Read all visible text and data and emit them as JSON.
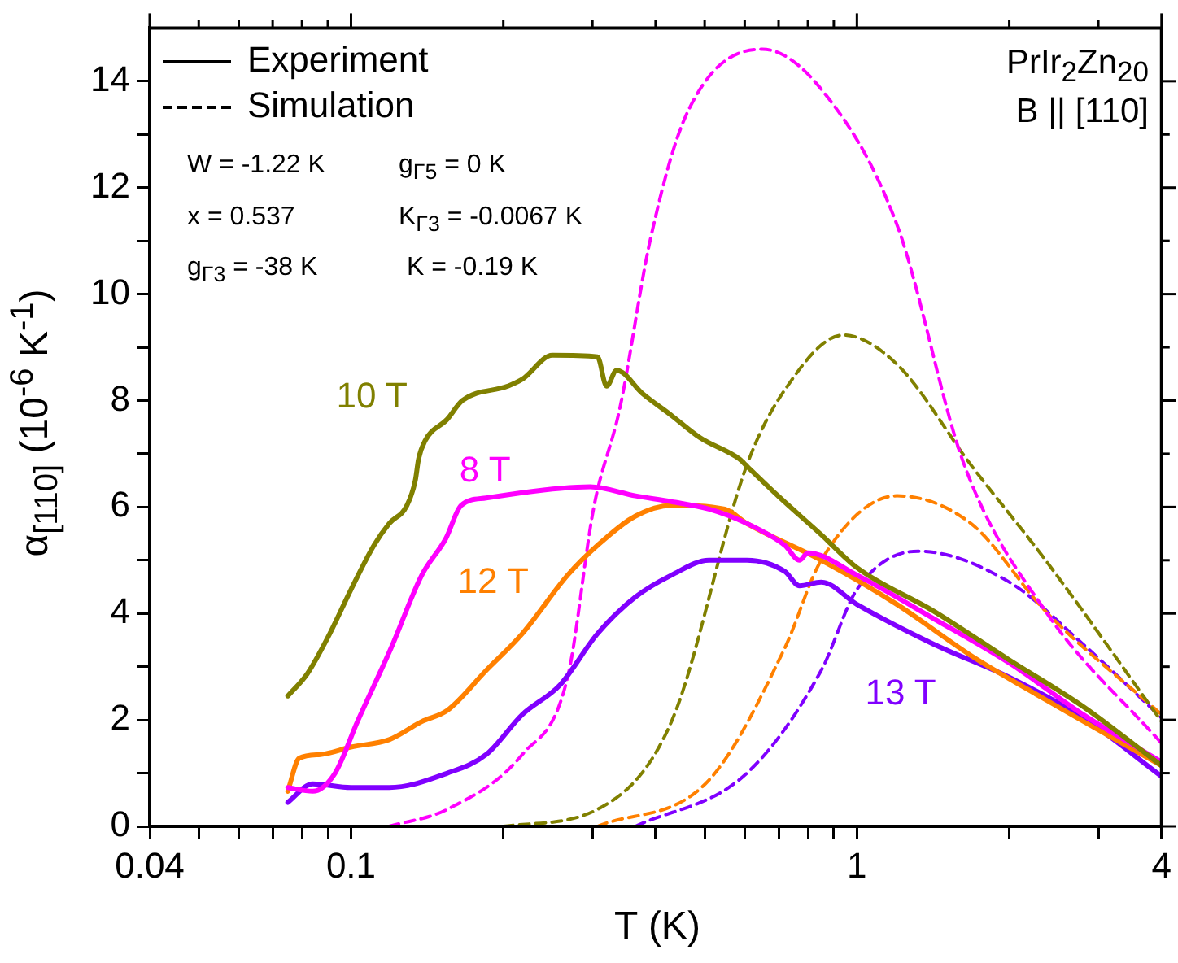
{
  "chart_data": {
    "type": "line",
    "xlabel": "T (K)",
    "ylabel": "α$_{[110]}$ (10$^{-6}$ K$^{-1}$)",
    "log": "x",
    "xlim": [
      0.04,
      4
    ],
    "xticks": [
      0.04,
      {
        "value": 0.05,
        "label": null
      },
      {
        "value": 0.06,
        "label": null
      },
      {
        "value": 0.07,
        "label": null
      },
      {
        "value": 0.08,
        "label": null
      },
      {
        "value": 0.09,
        "label": null
      },
      0.1,
      {
        "value": 0.2,
        "label": null
      },
      {
        "value": 0.3,
        "label": null
      },
      {
        "value": 0.4,
        "label": null
      },
      {
        "value": 0.5,
        "label": null
      },
      {
        "value": 0.6,
        "label": null
      },
      {
        "value": 0.7,
        "label": null
      },
      {
        "value": 0.8,
        "label": null
      },
      {
        "value": 0.9,
        "label": null
      },
      1,
      {
        "value": 2,
        "label": null
      },
      {
        "value": 3,
        "label": null
      },
      4
    ],
    "ylim": [
      0,
      15
    ],
    "yticks": [
      0,
      {
        "value": 1,
        "label": null
      },
      2,
      {
        "value": 3,
        "label": null
      },
      4,
      {
        "value": 5,
        "label": null
      },
      6,
      {
        "value": 7,
        "label": null
      },
      8,
      {
        "value": 9,
        "label": null
      },
      10,
      {
        "value": 11,
        "label": null
      },
      12,
      {
        "value": 13,
        "label": null
      },
      14
    ],
    "grid": false,
    "legend": false,
    "marker": "none",
    "annotations": [
      "Experiment",
      "Simulation",
      "PrIr$_{2}$Zn$_{20}$",
      "B || [110]",
      "W = -1.22 K",
      "g$_{Γ5}$ = 0 K",
      "x = 0.537",
      "K$_{Γ3}$ = -0.0067 K",
      "g$_{Γ3}$ = -38 K",
      "K = -0.19 K"
    ],
    "series": [
      {
        "name": "10 T",
        "color": "#808000",
        "line_style": "solid",
        "x": [
          0.075,
          0.082,
          0.09,
          0.1,
          0.111,
          0.119,
          0.129,
          0.134,
          0.136,
          0.14,
          0.155,
          0.166,
          0.204,
          0.218,
          0.25,
          0.307,
          0.32,
          0.335,
          0.377,
          0.43,
          0.49,
          0.586,
          0.607,
          0.7,
          0.85,
          1.0,
          1.42,
          1.99,
          2.8,
          4
        ],
        "values": [
          2.45,
          2.87,
          3.55,
          4.45,
          5.28,
          5.69,
          6.03,
          6.5,
          6.9,
          7.24,
          7.65,
          8.0,
          8.27,
          8.4,
          8.85,
          8.82,
          8.27,
          8.57,
          8.13,
          7.72,
          7.3,
          6.9,
          6.76,
          6.2,
          5.48,
          4.86,
          4.04,
          3.14,
          2.25,
          1.14
        ]
      },
      {
        "name": "8 T",
        "color": "#ff00ff",
        "line_style": "solid",
        "x": [
          0.075,
          0.084,
          0.093,
          0.103,
          0.12,
          0.138,
          0.154,
          0.165,
          0.185,
          0.218,
          0.259,
          0.297,
          0.365,
          0.43,
          0.51,
          0.606,
          0.72,
          0.77,
          0.8,
          1.0,
          1.42,
          2.0,
          2.8,
          4
        ],
        "values": [
          0.73,
          0.66,
          1.0,
          1.97,
          3.35,
          4.72,
          5.41,
          6.03,
          6.17,
          6.27,
          6.35,
          6.38,
          6.21,
          6.1,
          5.96,
          5.69,
          5.28,
          5.0,
          5.14,
          4.72,
          3.9,
          3.07,
          2.1,
          1.21
        ]
      },
      {
        "name": "12 T",
        "color": "#ff8000",
        "line_style": "solid",
        "x": [
          0.075,
          0.079,
          0.087,
          0.1,
          0.119,
          0.138,
          0.155,
          0.185,
          0.218,
          0.268,
          0.307,
          0.365,
          0.43,
          0.548,
          0.606,
          0.85,
          1.2,
          1.68,
          2.36,
          4
        ],
        "values": [
          0.66,
          1.28,
          1.35,
          1.49,
          1.63,
          1.97,
          2.18,
          2.93,
          3.62,
          4.72,
          5.28,
          5.83,
          6.03,
          5.96,
          5.69,
          5.0,
          4.17,
          3.21,
          2.38,
          1.14
        ]
      },
      {
        "name": "13 T",
        "color": "#8000ff",
        "line_style": "solid",
        "x": [
          0.075,
          0.084,
          0.1,
          0.119,
          0.155,
          0.185,
          0.218,
          0.259,
          0.307,
          0.365,
          0.43,
          0.51,
          0.606,
          0.72,
          0.77,
          0.85,
          1.0,
          1.42,
          2.0,
          2.8,
          4
        ],
        "values": [
          0.45,
          0.8,
          0.73,
          0.73,
          1.0,
          1.35,
          2.1,
          2.66,
          3.62,
          4.31,
          4.72,
          5.0,
          5.0,
          4.79,
          4.52,
          4.59,
          4.17,
          3.42,
          2.8,
          2.04,
          0.94
        ]
      },
      {
        "color": "#ff00ff",
        "line_style": "dashed",
        "x": [
          0.119,
          0.155,
          0.218,
          0.268,
          0.302,
          0.34,
          0.39,
          0.46,
          0.65,
          0.85,
          1.2,
          1.63,
          2.36,
          4
        ],
        "values": [
          0,
          0.32,
          1.35,
          2.8,
          6.0,
          7.86,
          11.0,
          13.37,
          14.6,
          13.85,
          11.3,
          6.79,
          4.04,
          1.56
        ]
      },
      {
        "color": "#808000",
        "line_style": "dashed",
        "x": [
          0.2,
          0.307,
          0.43,
          0.606,
          0.72,
          0.94,
          1.2,
          1.68,
          2.36,
          4
        ],
        "values": [
          0,
          0.32,
          1.97,
          6.79,
          8.2,
          9.23,
          8.68,
          6.79,
          5.0,
          1.97
        ]
      },
      {
        "color": "#ff8000",
        "line_style": "dashed",
        "x": [
          0.307,
          0.51,
          0.72,
          0.85,
          1.2,
          1.68,
          2.36,
          4
        ],
        "values": [
          0,
          0.87,
          3.35,
          5.0,
          6.21,
          5.69,
          4.04,
          2.1
        ]
      },
      {
        "color": "#8000ff",
        "line_style": "dashed",
        "x": [
          0.365,
          0.606,
          0.85,
          1.0,
          1.32,
          2.0,
          2.8,
          4
        ],
        "values": [
          0,
          1.0,
          2.93,
          4.45,
          5.17,
          4.59,
          3.42,
          2.04
        ]
      }
    ]
  }
}
